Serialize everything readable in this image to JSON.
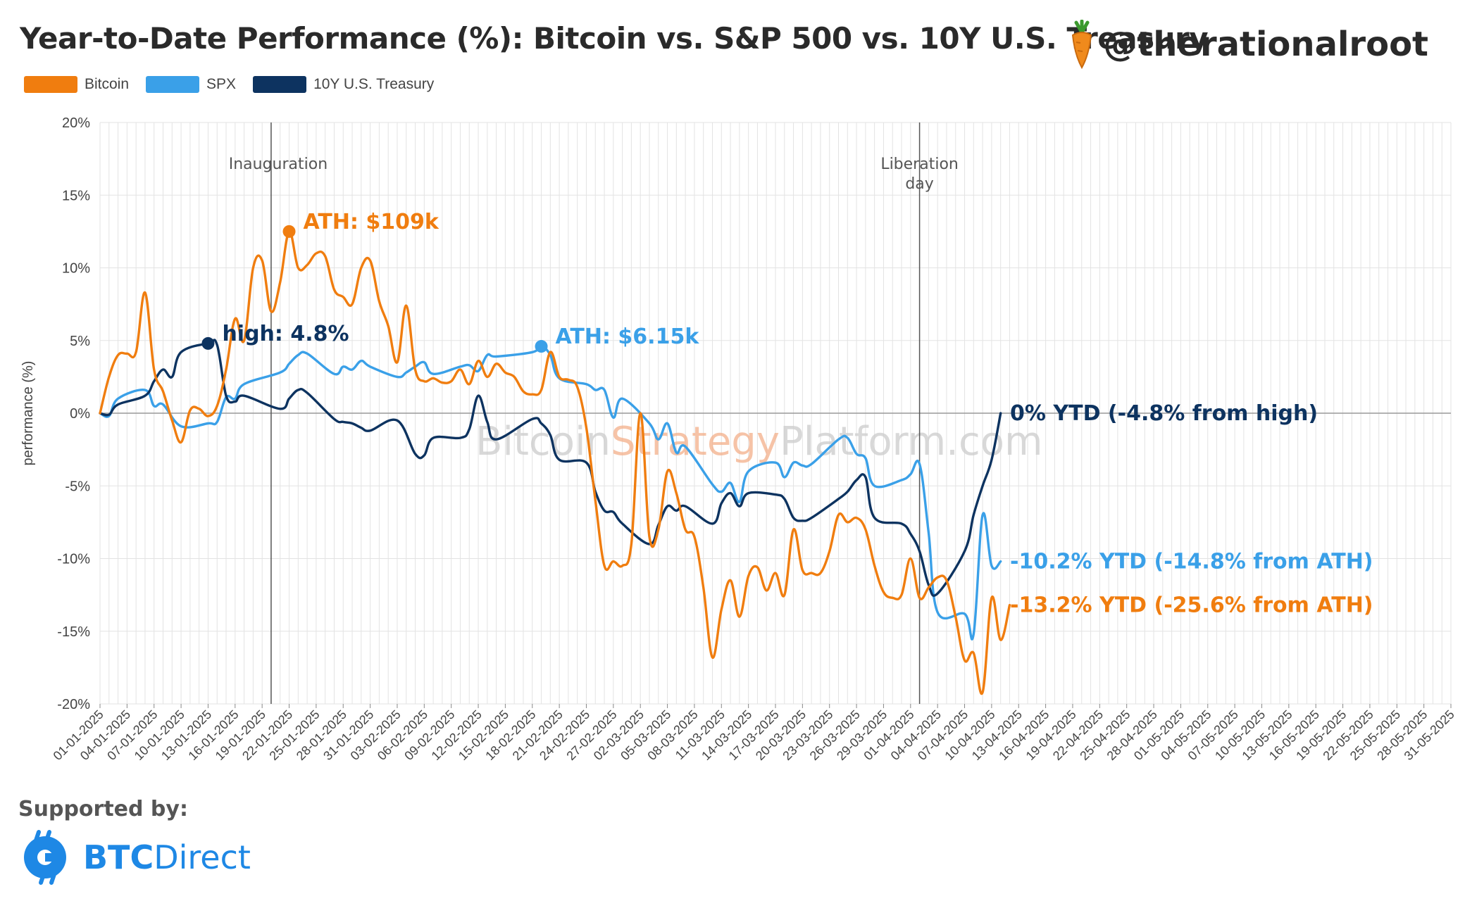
{
  "header": {
    "title": "Year-to-Date Performance (%): Bitcoin vs. S&P 500 vs. 10Y U.S. Treasury",
    "handle": "@therationalroot"
  },
  "legend": [
    {
      "label": "Bitcoin",
      "color": "#f07d0f"
    },
    {
      "label": "SPX",
      "color": "#3aa0e8"
    },
    {
      "label": "10Y U.S. Treasury",
      "color": "#0d3360"
    }
  ],
  "watermark": {
    "part1": "Bitcoin",
    "part2": "Strategy",
    "part3": "Platform.com"
  },
  "footer": {
    "supported_by": "Supported by:",
    "sponsor_bold": "BTC",
    "sponsor_rest": "Direct"
  },
  "colors": {
    "bitcoin": "#f07d0f",
    "spx": "#3aa0e8",
    "treasury": "#0d3360",
    "grid": "#e3e3e3",
    "event_line": "#555555"
  },
  "chart_data": {
    "type": "line",
    "ylabel": "performance (%)",
    "xlabel": "",
    "ylim": [
      -20,
      20
    ],
    "yticks": [
      20,
      15,
      10,
      5,
      0,
      -5,
      -10,
      -15,
      -20
    ],
    "ytick_labels": [
      "20%",
      "15%",
      "10%",
      "5%",
      "0%",
      "-5%",
      "-10%",
      "-15%",
      "-20%"
    ],
    "x_start": "2025-01-01",
    "x_end": "2025-05-31",
    "xtick_labels": [
      "01-01-2025",
      "04-01-2025",
      "07-01-2025",
      "10-01-2025",
      "13-01-2025",
      "16-01-2025",
      "19-01-2025",
      "22-01-2025",
      "25-01-2025",
      "28-01-2025",
      "31-01-2025",
      "03-02-2025",
      "06-02-2025",
      "09-02-2025",
      "12-02-2025",
      "15-02-2025",
      "18-02-2025",
      "21-02-2025",
      "24-02-2025",
      "27-02-2025",
      "02-03-2025",
      "05-03-2025",
      "08-03-2025",
      "11-03-2025",
      "14-03-2025",
      "17-03-2025",
      "20-03-2025",
      "23-03-2025",
      "26-03-2025",
      "29-03-2025",
      "01-04-2025",
      "04-04-2025",
      "07-04-2025",
      "10-04-2025",
      "13-04-2025",
      "16-04-2025",
      "19-04-2025",
      "22-04-2025",
      "25-04-2025",
      "28-04-2025",
      "01-05-2025",
      "04-05-2025",
      "07-05-2025",
      "10-05-2025",
      "13-05-2025",
      "16-05-2025",
      "19-05-2025",
      "22-05-2025",
      "25-05-2025",
      "28-05-2025",
      "31-05-2025"
    ],
    "grid": true,
    "legend_position": "top-left",
    "events": [
      {
        "date": "2025-01-20",
        "label": "Inauguration"
      },
      {
        "date": "2025-04-02",
        "label_line1": "Liberation",
        "label_line2": "day"
      }
    ],
    "series": [
      {
        "name": "Bitcoin",
        "color": "#f07d0f",
        "points": [
          [
            "2025-01-01",
            0
          ],
          [
            "2025-01-02",
            2.5
          ],
          [
            "2025-01-03",
            4
          ],
          [
            "2025-01-04",
            4.1
          ],
          [
            "2025-01-05",
            4.2
          ],
          [
            "2025-01-06",
            8.3
          ],
          [
            "2025-01-07",
            3
          ],
          [
            "2025-01-08",
            1.5
          ],
          [
            "2025-01-09",
            -0.5
          ],
          [
            "2025-01-10",
            -2
          ],
          [
            "2025-01-11",
            0.2
          ],
          [
            "2025-01-12",
            0.3
          ],
          [
            "2025-01-13",
            -0.2
          ],
          [
            "2025-01-14",
            0.5
          ],
          [
            "2025-01-15",
            3
          ],
          [
            "2025-01-16",
            6.5
          ],
          [
            "2025-01-17",
            5
          ],
          [
            "2025-01-18",
            10
          ],
          [
            "2025-01-19",
            10.5
          ],
          [
            "2025-01-20",
            7
          ],
          [
            "2025-01-21",
            9
          ],
          [
            "2025-01-22",
            12.5
          ],
          [
            "2025-01-23",
            10
          ],
          [
            "2025-01-24",
            10.2
          ],
          [
            "2025-01-25",
            11
          ],
          [
            "2025-01-26",
            10.8
          ],
          [
            "2025-01-27",
            8.5
          ],
          [
            "2025-01-28",
            8
          ],
          [
            "2025-01-29",
            7.5
          ],
          [
            "2025-01-30",
            10
          ],
          [
            "2025-01-31",
            10.5
          ],
          [
            "2025-02-01",
            7.7
          ],
          [
            "2025-02-02",
            6
          ],
          [
            "2025-02-03",
            3.5
          ],
          [
            "2025-02-04",
            7.4
          ],
          [
            "2025-02-05",
            3
          ],
          [
            "2025-02-06",
            2.2
          ],
          [
            "2025-02-07",
            2.4
          ],
          [
            "2025-02-08",
            2.1
          ],
          [
            "2025-02-09",
            2.2
          ],
          [
            "2025-02-10",
            3
          ],
          [
            "2025-02-11",
            2
          ],
          [
            "2025-02-12",
            3.6
          ],
          [
            "2025-02-13",
            2.5
          ],
          [
            "2025-02-14",
            3.4
          ],
          [
            "2025-02-15",
            2.8
          ],
          [
            "2025-02-16",
            2.5
          ],
          [
            "2025-02-17",
            1.5
          ],
          [
            "2025-02-18",
            1.3
          ],
          [
            "2025-02-19",
            1.6
          ],
          [
            "2025-02-20",
            4.2
          ],
          [
            "2025-02-21",
            2.5
          ],
          [
            "2025-02-22",
            2.3
          ],
          [
            "2025-02-23",
            1.8
          ],
          [
            "2025-02-24",
            -1
          ],
          [
            "2025-02-25",
            -6
          ],
          [
            "2025-02-26",
            -10.5
          ],
          [
            "2025-02-27",
            -10.2
          ],
          [
            "2025-02-28",
            -10.5
          ],
          [
            "2025-03-01",
            -9
          ],
          [
            "2025-03-02",
            0
          ],
          [
            "2025-03-03",
            -8.5
          ],
          [
            "2025-03-04",
            -8
          ],
          [
            "2025-03-05",
            -4
          ],
          [
            "2025-03-06",
            -5.5
          ],
          [
            "2025-03-07",
            -8
          ],
          [
            "2025-03-08",
            -8.5
          ],
          [
            "2025-03-09",
            -12
          ],
          [
            "2025-03-10",
            -16.8
          ],
          [
            "2025-03-11",
            -13.5
          ],
          [
            "2025-03-12",
            -11.5
          ],
          [
            "2025-03-13",
            -14
          ],
          [
            "2025-03-14",
            -11.2
          ],
          [
            "2025-03-15",
            -10.6
          ],
          [
            "2025-03-16",
            -12.2
          ],
          [
            "2025-03-17",
            -11
          ],
          [
            "2025-03-18",
            -12.5
          ],
          [
            "2025-03-19",
            -8
          ],
          [
            "2025-03-20",
            -10.8
          ],
          [
            "2025-03-21",
            -11
          ],
          [
            "2025-03-22",
            -11
          ],
          [
            "2025-03-23",
            -9.5
          ],
          [
            "2025-03-24",
            -7
          ],
          [
            "2025-03-25",
            -7.5
          ],
          [
            "2025-03-26",
            -7.2
          ],
          [
            "2025-03-27",
            -8
          ],
          [
            "2025-03-28",
            -10.5
          ],
          [
            "2025-03-29",
            -12.3
          ],
          [
            "2025-03-30",
            -12.7
          ],
          [
            "2025-03-31",
            -12.5
          ],
          [
            "2025-04-01",
            -10
          ],
          [
            "2025-04-02",
            -12.7
          ],
          [
            "2025-04-03",
            -12
          ],
          [
            "2025-04-04",
            -11.3
          ],
          [
            "2025-04-05",
            -11.5
          ],
          [
            "2025-04-06",
            -14
          ],
          [
            "2025-04-07",
            -17
          ],
          [
            "2025-04-08",
            -16.5
          ],
          [
            "2025-04-09",
            -19.2
          ],
          [
            "2025-04-10",
            -12.7
          ],
          [
            "2025-04-11",
            -15.6
          ],
          [
            "2025-04-12",
            -13.2
          ]
        ]
      },
      {
        "name": "SPX",
        "color": "#3aa0e8",
        "points": [
          [
            "2025-01-01",
            0
          ],
          [
            "2025-01-02",
            -0.2
          ],
          [
            "2025-01-03",
            1
          ],
          [
            "2025-01-06",
            1.6
          ],
          [
            "2025-01-07",
            0.5
          ],
          [
            "2025-01-08",
            0.6
          ],
          [
            "2025-01-10",
            -0.9
          ],
          [
            "2025-01-13",
            -0.7
          ],
          [
            "2025-01-14",
            -0.6
          ],
          [
            "2025-01-15",
            1.1
          ],
          [
            "2025-01-16",
            1
          ],
          [
            "2025-01-17",
            2
          ],
          [
            "2025-01-21",
            2.8
          ],
          [
            "2025-01-22",
            3.4
          ],
          [
            "2025-01-23",
            4
          ],
          [
            "2025-01-24",
            4.1
          ],
          [
            "2025-01-27",
            2.7
          ],
          [
            "2025-01-28",
            3.2
          ],
          [
            "2025-01-29",
            3
          ],
          [
            "2025-01-30",
            3.6
          ],
          [
            "2025-01-31",
            3.2
          ],
          [
            "2025-02-03",
            2.5
          ],
          [
            "2025-02-04",
            2.8
          ],
          [
            "2025-02-05",
            3.2
          ],
          [
            "2025-02-06",
            3.5
          ],
          [
            "2025-02-07",
            2.7
          ],
          [
            "2025-02-10",
            3.2
          ],
          [
            "2025-02-11",
            3.3
          ],
          [
            "2025-02-12",
            2.9
          ],
          [
            "2025-02-13",
            4
          ],
          [
            "2025-02-14",
            3.9
          ],
          [
            "2025-02-18",
            4.2
          ],
          [
            "2025-02-19",
            4.6
          ],
          [
            "2025-02-20",
            4
          ],
          [
            "2025-02-21",
            2.4
          ],
          [
            "2025-02-24",
            2
          ],
          [
            "2025-02-25",
            1.6
          ],
          [
            "2025-02-26",
            1.6
          ],
          [
            "2025-02-27",
            -0.3
          ],
          [
            "2025-02-28",
            1
          ],
          [
            "2025-03-03",
            -0.7
          ],
          [
            "2025-03-04",
            -1.8
          ],
          [
            "2025-03-05",
            -0.7
          ],
          [
            "2025-03-06",
            -2.7
          ],
          [
            "2025-03-07",
            -2.3
          ],
          [
            "2025-03-10",
            -4.9
          ],
          [
            "2025-03-11",
            -5.4
          ],
          [
            "2025-03-12",
            -4.8
          ],
          [
            "2025-03-13",
            -6.1
          ],
          [
            "2025-03-14",
            -4
          ],
          [
            "2025-03-17",
            -3.4
          ],
          [
            "2025-03-18",
            -4.4
          ],
          [
            "2025-03-19",
            -3.4
          ],
          [
            "2025-03-20",
            -3.6
          ],
          [
            "2025-03-21",
            -3.5
          ],
          [
            "2025-03-24",
            -1.8
          ],
          [
            "2025-03-25",
            -1.7
          ],
          [
            "2025-03-26",
            -2.8
          ],
          [
            "2025-03-27",
            -3.1
          ],
          [
            "2025-03-28",
            -5
          ],
          [
            "2025-03-31",
            -4.6
          ],
          [
            "2025-04-01",
            -4.2
          ],
          [
            "2025-04-02",
            -3.5
          ],
          [
            "2025-04-03",
            -8.2
          ],
          [
            "2025-04-04",
            -13.7
          ],
          [
            "2025-04-07",
            -13.8
          ],
          [
            "2025-04-08",
            -15.2
          ],
          [
            "2025-04-09",
            -7
          ],
          [
            "2025-04-10",
            -10.5
          ],
          [
            "2025-04-11",
            -10.2
          ]
        ]
      },
      {
        "name": "10Y U.S. Treasury",
        "color": "#0d3360",
        "points": [
          [
            "2025-01-01",
            0
          ],
          [
            "2025-01-02",
            -0.1
          ],
          [
            "2025-01-03",
            0.6
          ],
          [
            "2025-01-06",
            1.2
          ],
          [
            "2025-01-07",
            2.2
          ],
          [
            "2025-01-08",
            3
          ],
          [
            "2025-01-09",
            2.5
          ],
          [
            "2025-01-10",
            4.2
          ],
          [
            "2025-01-13",
            4.8
          ],
          [
            "2025-01-14",
            4.7
          ],
          [
            "2025-01-15",
            1.2
          ],
          [
            "2025-01-16",
            0.8
          ],
          [
            "2025-01-17",
            1.2
          ],
          [
            "2025-01-21",
            0.3
          ],
          [
            "2025-01-22",
            1
          ],
          [
            "2025-01-23",
            1.6
          ],
          [
            "2025-01-24",
            1.4
          ],
          [
            "2025-01-27",
            -0.4
          ],
          [
            "2025-01-28",
            -0.6
          ],
          [
            "2025-01-29",
            -0.7
          ],
          [
            "2025-01-30",
            -1
          ],
          [
            "2025-01-31",
            -1.2
          ],
          [
            "2025-02-03",
            -0.5
          ],
          [
            "2025-02-05",
            -2.8
          ],
          [
            "2025-02-06",
            -2.9
          ],
          [
            "2025-02-07",
            -1.7
          ],
          [
            "2025-02-10",
            -1.7
          ],
          [
            "2025-02-11",
            -1.1
          ],
          [
            "2025-02-12",
            1.2
          ],
          [
            "2025-02-13",
            -0.6
          ],
          [
            "2025-02-14",
            -1.8
          ],
          [
            "2025-02-18",
            -0.4
          ],
          [
            "2025-02-19",
            -0.7
          ],
          [
            "2025-02-20",
            -1.5
          ],
          [
            "2025-02-21",
            -3.2
          ],
          [
            "2025-02-24",
            -3.4
          ],
          [
            "2025-02-25",
            -5.4
          ],
          [
            "2025-02-26",
            -6.7
          ],
          [
            "2025-02-27",
            -6.8
          ],
          [
            "2025-02-28",
            -7.6
          ],
          [
            "2025-03-03",
            -9
          ],
          [
            "2025-03-04",
            -7.7
          ],
          [
            "2025-03-05",
            -6.4
          ],
          [
            "2025-03-06",
            -6.7
          ],
          [
            "2025-03-07",
            -6.4
          ],
          [
            "2025-03-10",
            -7.6
          ],
          [
            "2025-03-11",
            -6.2
          ],
          [
            "2025-03-12",
            -5.5
          ],
          [
            "2025-03-13",
            -6.4
          ],
          [
            "2025-03-14",
            -5.5
          ],
          [
            "2025-03-17",
            -5.6
          ],
          [
            "2025-03-18",
            -5.9
          ],
          [
            "2025-03-19",
            -7.2
          ],
          [
            "2025-03-20",
            -7.4
          ],
          [
            "2025-03-21",
            -7.2
          ],
          [
            "2025-03-24",
            -5.9
          ],
          [
            "2025-03-25",
            -5.4
          ],
          [
            "2025-03-26",
            -4.6
          ],
          [
            "2025-03-27",
            -4.4
          ],
          [
            "2025-03-28",
            -7.2
          ],
          [
            "2025-03-31",
            -7.6
          ],
          [
            "2025-04-01",
            -8.3
          ],
          [
            "2025-04-02",
            -9.5
          ],
          [
            "2025-04-03",
            -11.8
          ],
          [
            "2025-04-04",
            -12.4
          ],
          [
            "2025-04-07",
            -9.5
          ],
          [
            "2025-04-08",
            -7
          ],
          [
            "2025-04-09",
            -5
          ],
          [
            "2025-04-10",
            -3.2
          ],
          [
            "2025-04-11",
            0
          ]
        ]
      }
    ],
    "annotations": [
      {
        "text": "ATH: $109k",
        "date": "2025-01-22",
        "value": 12.5,
        "color": "#f07d0f"
      },
      {
        "text": "high: 4.8%",
        "date": "2025-01-13",
        "value": 4.8,
        "color": "#0d3360"
      },
      {
        "text": "ATH: $6.15k",
        "date": "2025-02-19",
        "value": 4.6,
        "color": "#3aa0e8"
      }
    ],
    "end_labels": [
      {
        "text": "0% YTD (-4.8% from high)",
        "value": 0,
        "color": "#0d3360"
      },
      {
        "text": "-10.2% YTD (-14.8% from ATH)",
        "value": -10.2,
        "color": "#3aa0e8"
      },
      {
        "text": "-13.2% YTD (-25.6% from ATH)",
        "value": -13.2,
        "color": "#f07d0f"
      }
    ]
  }
}
